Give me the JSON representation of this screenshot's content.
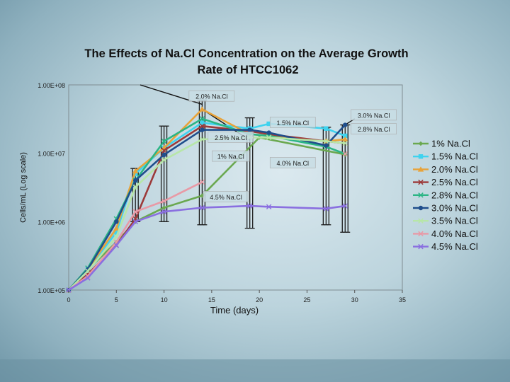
{
  "chart_data": {
    "type": "line",
    "title": "The Effects of Na.Cl Concentration on the Average Growth Rate of HTCC1062",
    "title_lines": [
      "The Effects of Na.Cl Concentration on the Average Growth",
      "Rate of HTCC1062"
    ],
    "xlabel": "Time (days)",
    "ylabel": "Cells/mL (Log scale)",
    "xlim": [
      0,
      35
    ],
    "ylim": [
      100000,
      100000000
    ],
    "y_scale": "log",
    "x_ticks": [
      0,
      5,
      10,
      15,
      20,
      25,
      30,
      35
    ],
    "x_tick_labels": [
      "0",
      "5",
      "10",
      "15",
      "20",
      "25",
      "30",
      "35"
    ],
    "y_ticks": [
      100000,
      1000000,
      10000000,
      100000000
    ],
    "y_tick_labels": [
      "1.00E+05",
      "1.00E+06",
      "1.00E+07",
      "1.00E+08"
    ],
    "legend_position": "right",
    "series": [
      {
        "name": "1% Na.Cl",
        "color": "#6aa84f",
        "marker": "diamond",
        "x": [
          0,
          2,
          5,
          7,
          10,
          14,
          20,
          29
        ],
        "y": [
          100000,
          200000,
          500000,
          1000000,
          1600000,
          2400000,
          17000000,
          9600000
        ]
      },
      {
        "name": "1.5% Na.Cl",
        "color": "#3fd3ef",
        "marker": "square",
        "x": [
          0,
          2,
          5,
          7,
          10,
          14,
          19,
          21,
          27,
          29
        ],
        "y": [
          100000,
          200000,
          700000,
          5000000,
          12000000,
          28000000,
          23000000,
          27000000,
          23000000,
          18000000
        ]
      },
      {
        "name": "2.0% Na.Cl",
        "color": "#e8a33a",
        "marker": "triangle",
        "x": [
          0,
          2,
          5,
          7,
          10,
          14,
          19,
          21,
          27,
          29
        ],
        "y": [
          100000,
          200000,
          800000,
          5500000,
          12000000,
          44000000,
          19000000,
          18000000,
          15000000,
          16000000
        ]
      },
      {
        "name": "2.5% Na.Cl",
        "color": "#9c3a3a",
        "marker": "x",
        "x": [
          0,
          2,
          5,
          7,
          10,
          14,
          19,
          21,
          27,
          29
        ],
        "y": [
          100000,
          170000,
          450000,
          1100000,
          11000000,
          25000000,
          21000000,
          19000000,
          15000000,
          14000000
        ]
      },
      {
        "name": "2.8% Na.Cl",
        "color": "#2bb585",
        "marker": "x",
        "x": [
          0,
          2,
          5,
          7,
          10,
          14,
          19,
          21,
          27,
          29
        ],
        "y": [
          100000,
          210000,
          1100000,
          4000000,
          15000000,
          32000000,
          19000000,
          18000000,
          12500000,
          9800000
        ]
      },
      {
        "name": "3.0% Na.Cl",
        "color": "#1f4e8c",
        "marker": "circle",
        "x": [
          0,
          2,
          5,
          7,
          10,
          14,
          19,
          21,
          27,
          29
        ],
        "y": [
          100000,
          200000,
          1000000,
          4000000,
          9500000,
          22000000,
          22000000,
          20000000,
          13000000,
          26000000
        ]
      },
      {
        "name": "3.5% Na.Cl",
        "color": "#b7e6a8",
        "marker": "x",
        "x": [
          0,
          2,
          5,
          7,
          10,
          14,
          19,
          21,
          27,
          29
        ],
        "y": [
          100000,
          190000,
          600000,
          3200000,
          8000000,
          16000000,
          17000000,
          17000000,
          15000000,
          14000000
        ]
      },
      {
        "name": "4.0% Na.Cl",
        "color": "#e89aa6",
        "marker": "x",
        "x": [
          0,
          2,
          5,
          7,
          10,
          14,
          29
        ],
        "y": [
          100000,
          160000,
          500000,
          1400000,
          2000000,
          3800000,
          9800000
        ],
        "gap_after_index": 5
      },
      {
        "name": "4.5% Na.Cl",
        "color": "#8a6fe0",
        "marker": "x",
        "x": [
          0,
          2,
          5,
          7,
          10,
          14,
          19,
          21,
          27,
          29
        ],
        "y": [
          100000,
          150000,
          450000,
          1000000,
          1400000,
          1600000,
          1700000,
          1650000,
          1550000,
          1700000
        ]
      }
    ],
    "error_bars": [
      {
        "x": 7,
        "low": 1000000,
        "high": 6000000
      },
      {
        "x": 10,
        "low": 1000000,
        "high": 25000000
      },
      {
        "x": 14,
        "low": 900000,
        "high": 60000000
      },
      {
        "x": 19,
        "low": 800000,
        "high": 33000000
      },
      {
        "x": 27,
        "low": 900000,
        "high": 24000000
      },
      {
        "x": 29,
        "low": 700000,
        "high": 26000000
      }
    ],
    "annotations": [
      {
        "text": "2.0% Na.Cl",
        "x": 15,
        "y": 68000000
      },
      {
        "text": "3.0% Na.Cl",
        "x": 32,
        "y": 36000000
      },
      {
        "text": "1.5% Na.Cl",
        "x": 23.5,
        "y": 28000000
      },
      {
        "text": "2.8% Na.Cl",
        "x": 32,
        "y": 22500000
      },
      {
        "text": "2.5% Na.Cl",
        "x": 17,
        "y": 17000000
      },
      {
        "text": "1% Na.Cl",
        "x": 17,
        "y": 9000000
      },
      {
        "text": "4.0% Na.Cl",
        "x": 23.5,
        "y": 7200000
      },
      {
        "text": "4.5% Na.Cl",
        "x": 16.5,
        "y": 2300000
      }
    ],
    "callout_lines": [
      {
        "from": [
          7.5,
          100000000
        ],
        "to": [
          14,
          52000000
        ]
      },
      {
        "from": [
          14,
          44000000
        ],
        "to": [
          19,
          15500000
        ]
      },
      {
        "from": [
          29,
          26000000
        ],
        "to": [
          30,
          32000000
        ]
      }
    ]
  }
}
